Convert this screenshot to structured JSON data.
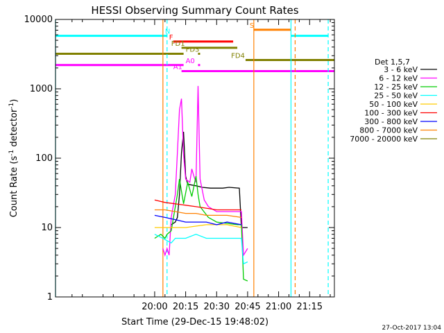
{
  "chart_data": {
    "type": "line",
    "title": "HESSI Observing Summary Count Rates",
    "xlabel": "Start Time (29-Dec-15 19:48:02)",
    "ylabel_main": "Count Rate (s",
    "ylabel_sup1": "-1",
    "ylabel_mid": " detector",
    "ylabel_sup2": "-1",
    "ylabel_end": ")",
    "footer": "27-Oct-2017 13:04",
    "y_scale": "log",
    "xlim_minutes": [
      -48,
      87
    ],
    "ylim": [
      1,
      10000
    ],
    "x_ticks": [
      {
        "label": "20:00",
        "minutes": 0
      },
      {
        "label": "20:15",
        "minutes": 15
      },
      {
        "label": "20:30",
        "minutes": 30
      },
      {
        "label": "20:45",
        "minutes": 45
      },
      {
        "label": "21:00",
        "minutes": 60
      },
      {
        "label": "21:15",
        "minutes": 75
      }
    ],
    "y_ticks": [
      {
        "label": "1",
        "value": 1
      },
      {
        "label": "10",
        "value": 10
      },
      {
        "label": "100",
        "value": 100
      },
      {
        "label": "1000",
        "value": 1000
      },
      {
        "label": "10000",
        "value": 10000
      }
    ],
    "legend_title": "Det 1,5,7",
    "legend_position": "right",
    "series": [
      {
        "name": "3 - 6 keV",
        "color": "#000000",
        "points": [
          [
            8,
            11
          ],
          [
            10,
            12
          ],
          [
            11,
            14
          ],
          [
            12,
            30
          ],
          [
            13,
            120
          ],
          [
            14,
            240
          ],
          [
            15,
            55
          ],
          [
            16,
            42
          ],
          [
            20,
            40
          ],
          [
            23,
            38
          ],
          [
            27,
            37
          ],
          [
            33,
            37
          ],
          [
            36,
            38
          ],
          [
            41,
            37
          ],
          [
            42,
            10
          ],
          [
            45,
            10
          ]
        ]
      },
      {
        "name": "6 - 12 keV",
        "color": "#ff00ff",
        "points": [
          [
            4,
            5
          ],
          [
            5,
            4
          ],
          [
            6,
            5
          ],
          [
            7,
            4
          ],
          [
            8,
            14
          ],
          [
            10,
            30
          ],
          [
            11,
            120
          ],
          [
            12,
            500
          ],
          [
            13,
            720
          ],
          [
            14,
            110
          ],
          [
            15,
            50
          ],
          [
            17,
            45
          ],
          [
            18,
            70
          ],
          [
            19,
            55
          ],
          [
            20,
            45
          ],
          [
            21,
            1100
          ],
          [
            22,
            50
          ],
          [
            24,
            25
          ],
          [
            26,
            20
          ],
          [
            30,
            17
          ],
          [
            40,
            17
          ],
          [
            42,
            17
          ],
          [
            43,
            4
          ],
          [
            45,
            5
          ]
        ]
      },
      {
        "name": "12 - 25 keV",
        "color": "#00cc00",
        "points": [
          [
            0,
            7
          ],
          [
            3,
            8
          ],
          [
            5,
            7
          ],
          [
            6,
            8
          ],
          [
            8,
            9
          ],
          [
            11,
            30
          ],
          [
            12,
            50
          ],
          [
            14,
            22
          ],
          [
            16,
            45
          ],
          [
            18,
            28
          ],
          [
            20,
            55
          ],
          [
            21,
            30
          ],
          [
            22,
            20
          ],
          [
            26,
            14
          ],
          [
            30,
            12
          ],
          [
            40,
            11
          ],
          [
            42,
            11
          ],
          [
            43,
            1.8
          ],
          [
            45,
            1.7
          ]
        ]
      },
      {
        "name": "25 - 50 keV",
        "color": "#00ffff",
        "points": [
          [
            0,
            8
          ],
          [
            4,
            7
          ],
          [
            8,
            6
          ],
          [
            10,
            7
          ],
          [
            15,
            7
          ],
          [
            20,
            8
          ],
          [
            25,
            7
          ],
          [
            30,
            7
          ],
          [
            35,
            7
          ],
          [
            42,
            7
          ],
          [
            43,
            3
          ],
          [
            45,
            3.2
          ]
        ]
      },
      {
        "name": "50 - 100 keV",
        "color": "#ffcc00",
        "points": [
          [
            0,
            10
          ],
          [
            8,
            10
          ],
          [
            15,
            10
          ],
          [
            25,
            11
          ],
          [
            35,
            11
          ],
          [
            42,
            10
          ]
        ]
      },
      {
        "name": "100 - 300 keV",
        "color": "#ff0000",
        "points": [
          [
            0,
            25
          ],
          [
            5,
            23
          ],
          [
            10,
            22
          ],
          [
            15,
            21
          ],
          [
            20,
            20
          ],
          [
            25,
            19
          ],
          [
            30,
            18
          ],
          [
            35,
            18
          ],
          [
            42,
            18
          ]
        ]
      },
      {
        "name": "300 - 800 keV",
        "color": "#0000ff",
        "points": [
          [
            0,
            15
          ],
          [
            5,
            14
          ],
          [
            10,
            13
          ],
          [
            15,
            12
          ],
          [
            20,
            12
          ],
          [
            25,
            12
          ],
          [
            30,
            11
          ],
          [
            35,
            12
          ],
          [
            42,
            11
          ]
        ]
      },
      {
        "name": "800 - 7000 keV",
        "color": "#ff8000",
        "points": [
          [
            0,
            18
          ],
          [
            5,
            18
          ],
          [
            10,
            17
          ],
          [
            15,
            16
          ],
          [
            20,
            16
          ],
          [
            25,
            15
          ],
          [
            30,
            15
          ],
          [
            35,
            15
          ],
          [
            42,
            14
          ]
        ]
      },
      {
        "name": "7000 - 20000 keV",
        "color": "#808000",
        "points": []
      }
    ],
    "flag_bars": [
      {
        "label": "N",
        "color": "#00ffff",
        "y": 5800,
        "segments": [
          [
            -48,
            6
          ]
        ],
        "label_minutes": 5
      },
      {
        "label": "F",
        "color": "#ff0000",
        "y": 4800,
        "segments": [
          [
            9,
            38
          ]
        ],
        "label_minutes": 7
      },
      {
        "label": "FD1",
        "color": "#808000",
        "y": 3900,
        "segments": [
          [
            13,
            40
          ]
        ],
        "label_minutes": 8
      },
      {
        "label": "FD3",
        "color": "#808000",
        "y": 3200,
        "segments": [
          [
            -48,
            14
          ],
          [
            21,
            22
          ]
        ],
        "label_minutes": 15
      },
      {
        "label": "FD4",
        "color": "#808000",
        "y": 2600,
        "segments": [
          [
            44,
            87
          ]
        ],
        "label_minutes": 37
      },
      {
        "label": "A0",
        "color": "#ff00ff",
        "y": 2200,
        "segments": [
          [
            -48,
            14
          ],
          [
            21,
            22
          ]
        ],
        "label_minutes": 15
      },
      {
        "label": "A1",
        "color": "#ff00ff",
        "y": 1800,
        "segments": [
          [
            13,
            87
          ]
        ],
        "label_minutes": 9
      },
      {
        "label": "S",
        "color": "#ff8000",
        "y": 7100,
        "segments": [
          [
            48,
            66
          ]
        ],
        "label_minutes": 46
      },
      {
        "label": "",
        "color": "#00ffff",
        "y": 5800,
        "segments": [
          [
            66,
            84
          ]
        ],
        "label_minutes": 66
      }
    ],
    "vertical_lines": [
      {
        "minutes": -48,
        "color": "#00ffff",
        "style": "solid"
      },
      {
        "minutes": 6,
        "color": "#00ffff",
        "style": "dashed"
      },
      {
        "minutes": 4,
        "color": "#ff8000",
        "style": "solid"
      },
      {
        "minutes": 48,
        "color": "#ff8000",
        "style": "solid"
      },
      {
        "minutes": 66,
        "color": "#00ffff",
        "style": "solid"
      },
      {
        "minutes": 68,
        "color": "#ff8000",
        "style": "dashed"
      },
      {
        "minutes": 84,
        "color": "#00ffff",
        "style": "dashed"
      }
    ]
  }
}
